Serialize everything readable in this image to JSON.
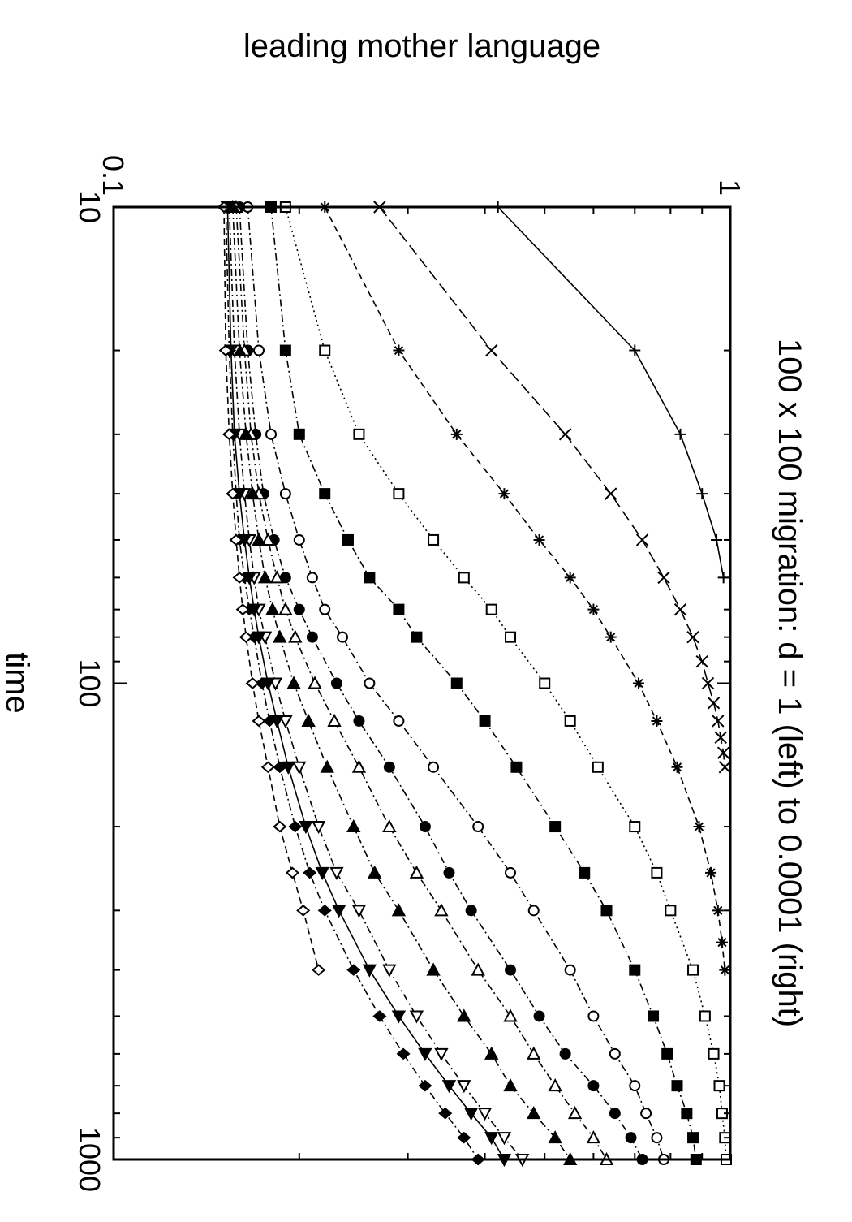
{
  "chart_data": {
    "type": "line",
    "title": "100 x 100 migration: d = 1 (left) to 0.0001 (right)",
    "xlabel": "time",
    "ylabel": "leading mother language",
    "xscale": "log",
    "yscale": "log",
    "xlim": [
      10,
      1000
    ],
    "ylim": [
      0.1,
      1
    ],
    "xticks": [
      10,
      100,
      1000
    ],
    "xtick_labels": [
      "10",
      "100",
      "1000"
    ],
    "yticks": [
      0.1,
      1
    ],
    "ytick_labels": [
      "0.1",
      "1"
    ],
    "grid": false,
    "legend": "none",
    "orientation": "rotated 90 degrees clockwise",
    "series": [
      {
        "marker": "plus",
        "dash": "solid",
        "x": [
          10,
          20,
          30,
          40,
          50,
          60
        ],
        "y": [
          0.42,
          0.7,
          0.83,
          0.9,
          0.95,
          0.975
        ]
      },
      {
        "marker": "cross",
        "dash": "long-dash",
        "x": [
          10,
          20,
          30,
          40,
          50,
          60,
          70,
          80,
          90,
          100,
          110,
          120,
          130,
          140,
          150
        ],
        "y": [
          0.27,
          0.41,
          0.54,
          0.64,
          0.72,
          0.78,
          0.83,
          0.87,
          0.9,
          0.92,
          0.94,
          0.955,
          0.965,
          0.975,
          0.98
        ]
      },
      {
        "marker": "asterisk",
        "dash": "dash",
        "x": [
          10,
          20,
          30,
          40,
          50,
          60,
          70,
          80,
          100,
          120,
          150,
          200,
          250,
          300,
          350,
          400
        ],
        "y": [
          0.22,
          0.29,
          0.36,
          0.43,
          0.49,
          0.55,
          0.6,
          0.64,
          0.71,
          0.76,
          0.82,
          0.89,
          0.93,
          0.955,
          0.97,
          0.98
        ]
      },
      {
        "marker": "open-square",
        "dash": "dotted",
        "x": [
          10,
          20,
          30,
          40,
          50,
          60,
          70,
          80,
          100,
          120,
          150,
          200,
          250,
          300,
          400,
          500,
          600,
          700,
          800,
          900,
          1000
        ],
        "y": [
          0.19,
          0.22,
          0.25,
          0.29,
          0.33,
          0.37,
          0.41,
          0.44,
          0.5,
          0.55,
          0.61,
          0.7,
          0.76,
          0.8,
          0.87,
          0.91,
          0.94,
          0.96,
          0.97,
          0.98,
          0.985
        ]
      },
      {
        "marker": "filled-square",
        "dash": "dash-dot",
        "x": [
          10,
          20,
          30,
          40,
          50,
          60,
          70,
          80,
          100,
          120,
          150,
          200,
          250,
          300,
          400,
          500,
          600,
          700,
          800,
          900,
          1000
        ],
        "y": [
          0.18,
          0.19,
          0.2,
          0.22,
          0.24,
          0.26,
          0.29,
          0.31,
          0.36,
          0.4,
          0.45,
          0.52,
          0.58,
          0.63,
          0.7,
          0.75,
          0.79,
          0.82,
          0.85,
          0.87,
          0.88
        ]
      },
      {
        "marker": "open-circle",
        "dash": "dash-dot",
        "x": [
          10,
          20,
          30,
          40,
          50,
          60,
          70,
          80,
          100,
          120,
          150,
          200,
          250,
          300,
          400,
          500,
          600,
          700,
          800,
          900,
          1000
        ],
        "y": [
          0.165,
          0.172,
          0.18,
          0.19,
          0.2,
          0.21,
          0.22,
          0.235,
          0.26,
          0.29,
          0.33,
          0.39,
          0.44,
          0.48,
          0.55,
          0.6,
          0.65,
          0.7,
          0.73,
          0.76,
          0.78
        ]
      },
      {
        "marker": "filled-circle",
        "dash": "dash-dot",
        "x": [
          10,
          20,
          30,
          40,
          50,
          60,
          70,
          80,
          100,
          120,
          150,
          200,
          250,
          300,
          400,
          500,
          600,
          700,
          800,
          900,
          1000
        ],
        "y": [
          0.16,
          0.165,
          0.17,
          0.175,
          0.182,
          0.19,
          0.2,
          0.21,
          0.23,
          0.25,
          0.28,
          0.32,
          0.35,
          0.38,
          0.44,
          0.49,
          0.54,
          0.6,
          0.65,
          0.69,
          0.72
        ]
      },
      {
        "marker": "open-triangle-left",
        "dash": "dash-dot",
        "x": [
          10,
          20,
          30,
          40,
          50,
          60,
          70,
          80,
          100,
          120,
          150,
          200,
          250,
          300,
          400,
          500,
          600,
          700,
          800,
          900,
          1000
        ],
        "y": [
          0.158,
          0.163,
          0.167,
          0.172,
          0.178,
          0.184,
          0.19,
          0.197,
          0.212,
          0.228,
          0.25,
          0.28,
          0.31,
          0.34,
          0.39,
          0.44,
          0.48,
          0.52,
          0.56,
          0.6,
          0.63
        ]
      },
      {
        "marker": "filled-triangle-left",
        "dash": "dash-dot",
        "x": [
          10,
          20,
          30,
          40,
          50,
          60,
          70,
          80,
          100,
          120,
          150,
          200,
          250,
          300,
          400,
          500,
          600,
          700,
          800,
          900,
          1000
        ],
        "y": [
          0.156,
          0.16,
          0.164,
          0.168,
          0.172,
          0.176,
          0.181,
          0.186,
          0.196,
          0.207,
          0.222,
          0.245,
          0.265,
          0.29,
          0.33,
          0.37,
          0.41,
          0.44,
          0.48,
          0.52,
          0.55
        ]
      },
      {
        "marker": "open-triangle-right",
        "dash": "dash-dot",
        "x": [
          10,
          20,
          30,
          40,
          50,
          60,
          70,
          80,
          100,
          120,
          150,
          200,
          250,
          300,
          400,
          500,
          600,
          700,
          800,
          900,
          1000
        ],
        "y": [
          0.154,
          0.157,
          0.16,
          0.163,
          0.166,
          0.169,
          0.172,
          0.176,
          0.183,
          0.19,
          0.2,
          0.215,
          0.23,
          0.25,
          0.28,
          0.31,
          0.34,
          0.37,
          0.4,
          0.43,
          0.46
        ]
      },
      {
        "marker": "filled-triangle-right",
        "dash": "solid",
        "x": [
          10,
          20,
          30,
          40,
          50,
          60,
          70,
          80,
          100,
          120,
          150,
          200,
          250,
          300,
          400,
          500,
          600,
          700,
          800,
          900,
          1000
        ],
        "y": [
          0.153,
          0.155,
          0.157,
          0.16,
          0.163,
          0.166,
          0.169,
          0.172,
          0.178,
          0.184,
          0.192,
          0.205,
          0.218,
          0.232,
          0.26,
          0.29,
          0.32,
          0.35,
          0.38,
          0.41,
          0.43
        ]
      },
      {
        "marker": "filled-diamond",
        "dash": "dash-dot",
        "x": [
          10,
          20,
          30,
          40,
          50,
          60,
          70,
          80,
          100,
          120,
          150,
          200,
          250,
          300,
          400,
          500,
          600,
          700,
          800,
          900,
          1000
        ],
        "y": [
          0.152,
          0.154,
          0.156,
          0.158,
          0.16,
          0.163,
          0.166,
          0.169,
          0.174,
          0.179,
          0.186,
          0.197,
          0.208,
          0.22,
          0.245,
          0.27,
          0.295,
          0.32,
          0.345,
          0.37,
          0.39
        ]
      },
      {
        "marker": "open-diamond",
        "dash": "dash",
        "x": [
          10,
          20,
          30,
          40,
          50,
          60,
          70,
          80,
          100,
          120,
          150,
          200,
          250,
          300,
          400
        ],
        "y": [
          0.151,
          0.152,
          0.154,
          0.156,
          0.158,
          0.16,
          0.162,
          0.164,
          0.168,
          0.172,
          0.178,
          0.186,
          0.195,
          0.203,
          0.215
        ]
      }
    ]
  }
}
